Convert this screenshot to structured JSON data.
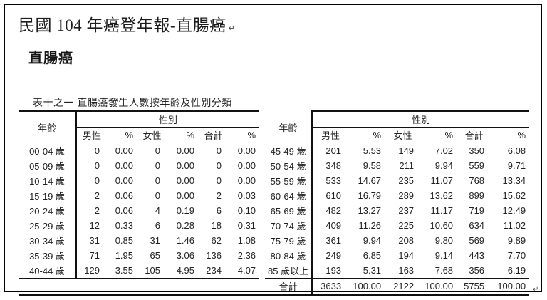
{
  "page": {
    "title": "民國 104 年癌登年報-直腸癌",
    "title_mark": "↵",
    "heading": "直腸癌",
    "table_caption": "表十之一  直腸癌發生人數按年齡及性別分類",
    "end_mark": "↵"
  },
  "table": {
    "age_header": "年齡",
    "gender_header": "性別",
    "columns": [
      "男性",
      "%",
      "女性",
      "%",
      "合計",
      "%"
    ],
    "left_rows": [
      {
        "age": "00-04 歲",
        "values": [
          "0",
          "0.00",
          "0",
          "0.00",
          "0",
          "0.00"
        ]
      },
      {
        "age": "05-09 歲",
        "values": [
          "0",
          "0.00",
          "0",
          "0.00",
          "0",
          "0.00"
        ]
      },
      {
        "age": "10-14 歲",
        "values": [
          "0",
          "0.00",
          "0",
          "0.00",
          "0",
          "0.00"
        ]
      },
      {
        "age": "15-19 歲",
        "values": [
          "2",
          "0.06",
          "0",
          "0.00",
          "2",
          "0.03"
        ]
      },
      {
        "age": "20-24 歲",
        "values": [
          "2",
          "0.06",
          "4",
          "0.19",
          "6",
          "0.10"
        ]
      },
      {
        "age": "25-29 歲",
        "values": [
          "12",
          "0.33",
          "6",
          "0.28",
          "18",
          "0.31"
        ]
      },
      {
        "age": "30-34 歲",
        "values": [
          "31",
          "0.85",
          "31",
          "1.46",
          "62",
          "1.08"
        ]
      },
      {
        "age": "35-39 歲",
        "values": [
          "71",
          "1.95",
          "65",
          "3.06",
          "136",
          "2.36"
        ]
      },
      {
        "age": "40-44 歲",
        "values": [
          "129",
          "3.55",
          "105",
          "4.95",
          "234",
          "4.07"
        ]
      }
    ],
    "right_rows": [
      {
        "age": "45-49 歲",
        "values": [
          "201",
          "5.53",
          "149",
          "7.02",
          "350",
          "6.08"
        ]
      },
      {
        "age": "50-54 歲",
        "values": [
          "348",
          "9.58",
          "211",
          "9.94",
          "559",
          "9.71"
        ]
      },
      {
        "age": "55-59 歲",
        "values": [
          "533",
          "14.67",
          "235",
          "11.07",
          "768",
          "13.34"
        ]
      },
      {
        "age": "60-64 歲",
        "values": [
          "610",
          "16.79",
          "289",
          "13.62",
          "899",
          "15.62"
        ]
      },
      {
        "age": "65-69 歲",
        "values": [
          "482",
          "13.27",
          "237",
          "11.17",
          "719",
          "12.49"
        ]
      },
      {
        "age": "70-74 歲",
        "values": [
          "409",
          "11.26",
          "225",
          "10.60",
          "634",
          "11.02"
        ]
      },
      {
        "age": "75-79 歲",
        "values": [
          "361",
          "9.94",
          "208",
          "9.80",
          "569",
          "9.89"
        ]
      },
      {
        "age": "80-84 歲",
        "values": [
          "249",
          "6.85",
          "194",
          "9.14",
          "443",
          "7.70"
        ]
      },
      {
        "age": "85 歲以上",
        "values": [
          "193",
          "5.31",
          "163",
          "7.68",
          "356",
          "6.19"
        ]
      }
    ],
    "total_row": {
      "label": "合計",
      "values": [
        "3633",
        "100.00",
        "2122",
        "100.00",
        "5755",
        "100.00"
      ]
    }
  }
}
